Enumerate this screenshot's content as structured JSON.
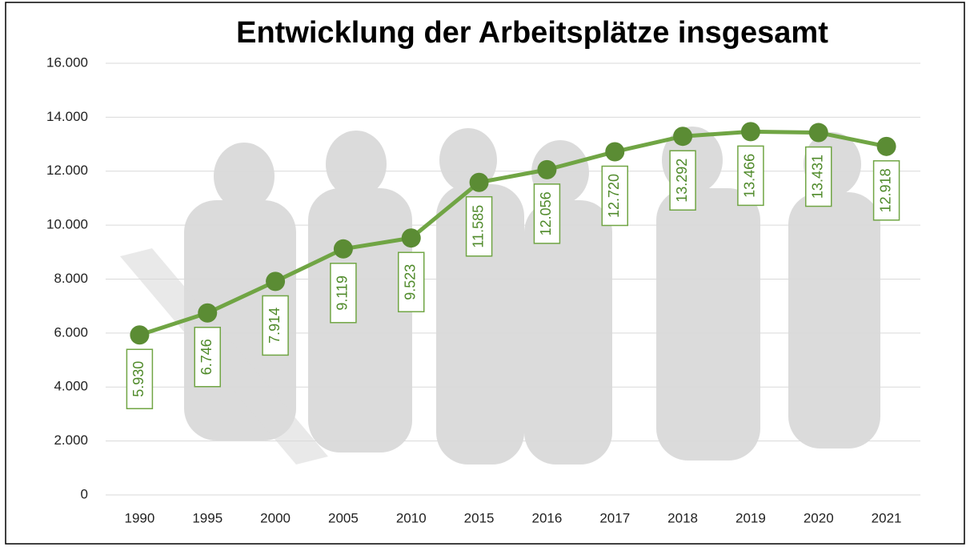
{
  "chart_data": {
    "type": "line",
    "title": "Entwicklung der Arbeitsplätze insgesamt",
    "categories": [
      "1990",
      "1995",
      "2000",
      "2005",
      "2010",
      "2015",
      "2016",
      "2017",
      "2018",
      "2019",
      "2020",
      "2021"
    ],
    "values": [
      5930,
      6746,
      7914,
      9119,
      9523,
      11585,
      12056,
      12720,
      13292,
      13466,
      13431,
      12918
    ],
    "value_labels": [
      "5.930",
      "6.746",
      "7.914",
      "9.119",
      "9.523",
      "11.585",
      "12.056",
      "12.720",
      "13.292",
      "13.466",
      "13.431",
      "12.918"
    ],
    "color": "#70a544",
    "marker_color": "#5b8c34",
    "ylim": [
      0,
      16000
    ],
    "yticks": [
      0,
      {
        "value": 2000,
        "label": "2.000"
      },
      {
        "value": 4000,
        "label": "4.000"
      },
      {
        "value": 6000,
        "label": "6.000"
      },
      {
        "value": 8000,
        "label": "8.000"
      },
      {
        "value": 10000,
        "label": "10.000"
      },
      {
        "value": 12000,
        "label": "12.000"
      },
      {
        "value": 14000,
        "label": "14.000"
      },
      {
        "value": 16000,
        "label": "16.000"
      }
    ],
    "grid": true
  }
}
